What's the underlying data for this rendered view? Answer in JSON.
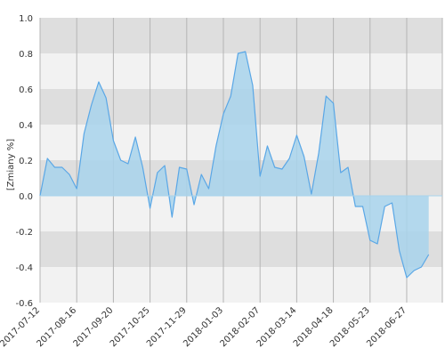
{
  "chart_data": {
    "type": "area",
    "ylabel": "[Zmiany %]",
    "ylim": [
      -0.6,
      1.0
    ],
    "y_ticks": [
      {
        "value": 1.0,
        "label": "1.0"
      },
      {
        "value": 0.8,
        "label": "0.8"
      },
      {
        "value": 0.6,
        "label": "0.6"
      },
      {
        "value": 0.4,
        "label": "0.4"
      },
      {
        "value": 0.2,
        "label": "0.2"
      },
      {
        "value": 0.0,
        "label": "0.0"
      },
      {
        "value": -0.2,
        "label": "-0.2"
      },
      {
        "value": -0.4,
        "label": "-0.4"
      },
      {
        "value": -0.6,
        "label": "-0.6"
      }
    ],
    "x_ticks": [
      "2017-07-12",
      "2017-08-16",
      "2017-09-20",
      "2017-10-25",
      "2017-11-29",
      "2018-01-03",
      "2018-02-07",
      "2018-03-14",
      "2018-04-18",
      "2018-05-23",
      "2018-06-27"
    ],
    "x_end": "2018-07-31",
    "grid": true,
    "series": [
      {
        "color": "#5aa7e6",
        "fill_color": "#a8d4ec",
        "points": [
          {
            "x": "2017-07-12",
            "y": 0.0
          },
          {
            "x": "2017-07-19",
            "y": 0.21
          },
          {
            "x": "2017-07-26",
            "y": 0.16
          },
          {
            "x": "2017-08-02",
            "y": 0.16
          },
          {
            "x": "2017-08-09",
            "y": 0.12
          },
          {
            "x": "2017-08-16",
            "y": 0.04
          },
          {
            "x": "2017-08-23",
            "y": 0.35
          },
          {
            "x": "2017-08-30",
            "y": 0.51
          },
          {
            "x": "2017-09-06",
            "y": 0.64
          },
          {
            "x": "2017-09-13",
            "y": 0.55
          },
          {
            "x": "2017-09-20",
            "y": 0.31
          },
          {
            "x": "2017-09-27",
            "y": 0.2
          },
          {
            "x": "2017-10-04",
            "y": 0.18
          },
          {
            "x": "2017-10-11",
            "y": 0.33
          },
          {
            "x": "2017-10-18",
            "y": 0.16
          },
          {
            "x": "2017-10-25",
            "y": -0.07
          },
          {
            "x": "2017-11-01",
            "y": 0.13
          },
          {
            "x": "2017-11-08",
            "y": 0.17
          },
          {
            "x": "2017-11-15",
            "y": -0.12
          },
          {
            "x": "2017-11-22",
            "y": 0.16
          },
          {
            "x": "2017-11-29",
            "y": 0.15
          },
          {
            "x": "2017-12-06",
            "y": -0.05
          },
          {
            "x": "2017-12-13",
            "y": 0.12
          },
          {
            "x": "2017-12-20",
            "y": 0.04
          },
          {
            "x": "2017-12-27",
            "y": 0.28
          },
          {
            "x": "2018-01-03",
            "y": 0.46
          },
          {
            "x": "2018-01-10",
            "y": 0.56
          },
          {
            "x": "2018-01-17",
            "y": 0.8
          },
          {
            "x": "2018-01-24",
            "y": 0.81
          },
          {
            "x": "2018-01-31",
            "y": 0.62
          },
          {
            "x": "2018-02-07",
            "y": 0.11
          },
          {
            "x": "2018-02-14",
            "y": 0.28
          },
          {
            "x": "2018-02-21",
            "y": 0.16
          },
          {
            "x": "2018-02-28",
            "y": 0.15
          },
          {
            "x": "2018-03-07",
            "y": 0.21
          },
          {
            "x": "2018-03-14",
            "y": 0.34
          },
          {
            "x": "2018-03-21",
            "y": 0.22
          },
          {
            "x": "2018-03-28",
            "y": 0.01
          },
          {
            "x": "2018-04-04",
            "y": 0.24
          },
          {
            "x": "2018-04-11",
            "y": 0.56
          },
          {
            "x": "2018-04-18",
            "y": 0.52
          },
          {
            "x": "2018-04-25",
            "y": 0.13
          },
          {
            "x": "2018-05-02",
            "y": 0.16
          },
          {
            "x": "2018-05-09",
            "y": -0.06
          },
          {
            "x": "2018-05-16",
            "y": -0.06
          },
          {
            "x": "2018-05-23",
            "y": -0.25
          },
          {
            "x": "2018-05-30",
            "y": -0.27
          },
          {
            "x": "2018-06-06",
            "y": -0.06
          },
          {
            "x": "2018-06-13",
            "y": -0.04
          },
          {
            "x": "2018-06-20",
            "y": -0.31
          },
          {
            "x": "2018-06-27",
            "y": -0.46
          },
          {
            "x": "2018-07-04",
            "y": -0.42
          },
          {
            "x": "2018-07-11",
            "y": -0.4
          },
          {
            "x": "2018-07-18",
            "y": -0.33
          }
        ]
      }
    ]
  }
}
